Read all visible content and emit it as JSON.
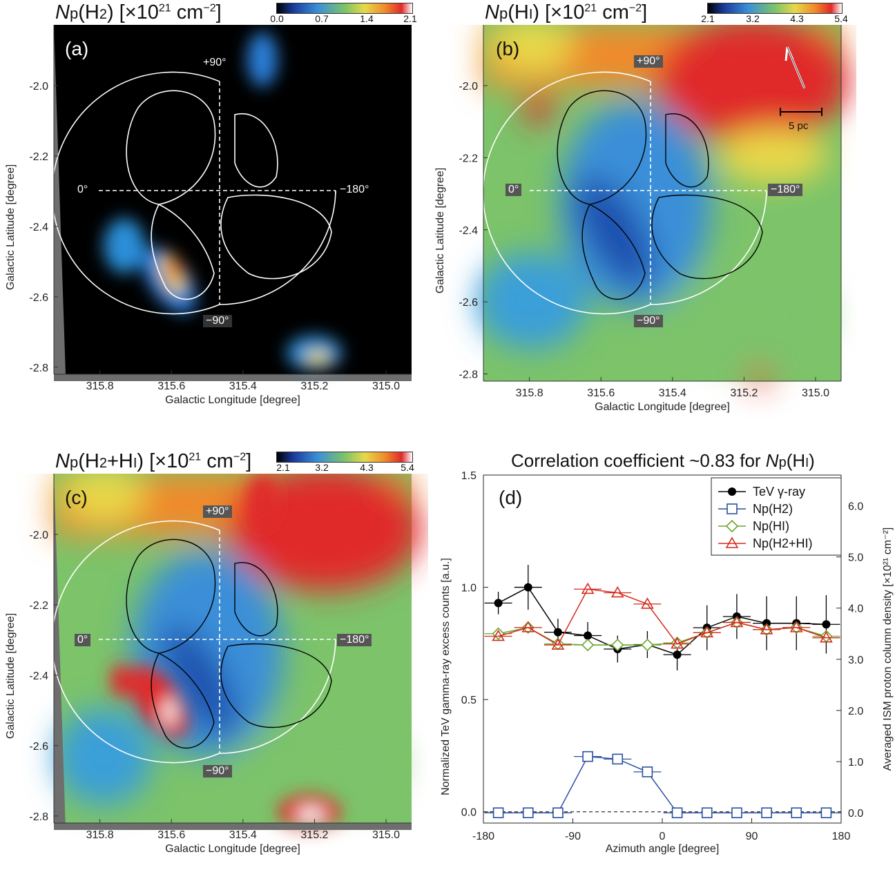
{
  "panels": {
    "a": {
      "title": "Np(H2) [×10²¹ cm⁻²]",
      "letter": "(a)",
      "colorbar_ticks": [
        "0.0",
        "0.7",
        "1.4",
        "2.1"
      ],
      "angle_labels": [
        "+90°",
        "0°",
        "−180°",
        "−90°"
      ],
      "x_ticks": [
        "315.8",
        "315.6",
        "315.4",
        "315.2",
        "315.0"
      ],
      "y_ticks": [
        "-2.0",
        "-2.2",
        "-2.4",
        "-2.6",
        "-2.8"
      ],
      "xlabel": "Galactic Longitude [degree]",
      "ylabel": "Galactic Latitude [degree]"
    },
    "b": {
      "title": "Np(HI) [×10²¹ cm⁻²]",
      "letter": "(b)",
      "colorbar_ticks": [
        "2.1",
        "3.2",
        "4.3",
        "5.4"
      ],
      "angle_labels": [
        "+90°",
        "0°",
        "−180°",
        "−90°"
      ],
      "scale_label": "5 pc",
      "x_ticks": [
        "315.8",
        "315.6",
        "315.4",
        "315.2",
        "315.0"
      ],
      "y_ticks": [
        "-2.0",
        "-2.2",
        "-2.4",
        "-2.6",
        "-2.8"
      ],
      "xlabel": "Galactic Longitude [degree]",
      "ylabel": "Galactic Latitude [degree]"
    },
    "c": {
      "title": "Np(H2+HI) [×10²¹ cm⁻²]",
      "letter": "(c)",
      "colorbar_ticks": [
        "2.1",
        "3.2",
        "4.3",
        "5.4"
      ],
      "angle_labels": [
        "+90°",
        "0°",
        "−180°",
        "−90°"
      ],
      "x_ticks": [
        "315.8",
        "315.6",
        "315.4",
        "315.2",
        "315.0"
      ],
      "y_ticks": [
        "-2.0",
        "-2.2",
        "-2.4",
        "-2.6",
        "-2.8"
      ],
      "xlabel": "Galactic Longitude [degree]",
      "ylabel": "Galactic Latitude [degree]"
    },
    "d": {
      "title": "Correlation coefficient ~0.83 for Np(HI)",
      "letter": "(d)"
    }
  },
  "colors": {
    "tev": "#000000",
    "h2": "#2a4fa0",
    "hi": "#6aa52a",
    "h2hi": "#d42a1e"
  },
  "chart_data": {
    "type": "line",
    "xlabel": "Azimuth angle [degree]",
    "ylabel": "Normalized TeV gamma-ray excess counts [a.u.]",
    "y2label": "Averaged ISM proton column density [×10²¹ cm⁻²]",
    "xlim": [
      -180,
      180
    ],
    "ylim": [
      -0.05,
      1.5
    ],
    "y2lim": [
      -0.2,
      6.6
    ],
    "x_ticks": [
      -180,
      -90,
      0,
      90,
      180
    ],
    "y_ticks": [
      "0.0",
      "0.5",
      "1.0",
      "1.5"
    ],
    "y2_ticks": [
      "0.0",
      "1.0",
      "2.0",
      "3.0",
      "4.0",
      "5.0",
      "6.0"
    ],
    "legend_position": "top-right",
    "series": [
      {
        "name": "TeV γ-ray",
        "axis": "left",
        "marker": "filled-circle",
        "x": [
          -165,
          -135,
          -105,
          -75,
          -45,
          -15,
          15,
          45,
          75,
          105,
          135,
          165
        ],
        "y": [
          0.93,
          1.0,
          0.8,
          0.785,
          0.725,
          0.745,
          0.7,
          0.82,
          0.87,
          0.84,
          0.84,
          0.835
        ],
        "yerr": [
          0.05,
          0.1,
          0.06,
          0.06,
          0.06,
          0.06,
          0.07,
          0.1,
          0.1,
          0.12,
          0.12,
          0.13
        ]
      },
      {
        "name": "Np(H2)",
        "axis": "right",
        "marker": "open-square",
        "x": [
          -165,
          -135,
          -105,
          -75,
          -45,
          -15,
          15,
          45,
          75,
          105,
          135,
          165
        ],
        "y": [
          0.0,
          0.0,
          0.0,
          1.1,
          1.05,
          0.8,
          0.0,
          0.0,
          0.0,
          0.0,
          0.0,
          0.0
        ]
      },
      {
        "name": "Np(HI)",
        "axis": "right",
        "marker": "open-diamond",
        "x": [
          -165,
          -135,
          -105,
          -75,
          -45,
          -15,
          15,
          45,
          75,
          105,
          135,
          165
        ],
        "y": [
          3.5,
          3.62,
          3.3,
          3.28,
          3.28,
          3.28,
          3.32,
          3.52,
          3.72,
          3.58,
          3.62,
          3.45
        ]
      },
      {
        "name": "Np(H2+HI)",
        "axis": "right",
        "marker": "open-triangle",
        "x": [
          -165,
          -135,
          -105,
          -75,
          -45,
          -15,
          15,
          45,
          75,
          105,
          135,
          165
        ],
        "y": [
          3.45,
          3.62,
          3.28,
          4.37,
          4.3,
          4.08,
          3.3,
          3.52,
          3.72,
          3.58,
          3.62,
          3.42
        ]
      }
    ]
  }
}
